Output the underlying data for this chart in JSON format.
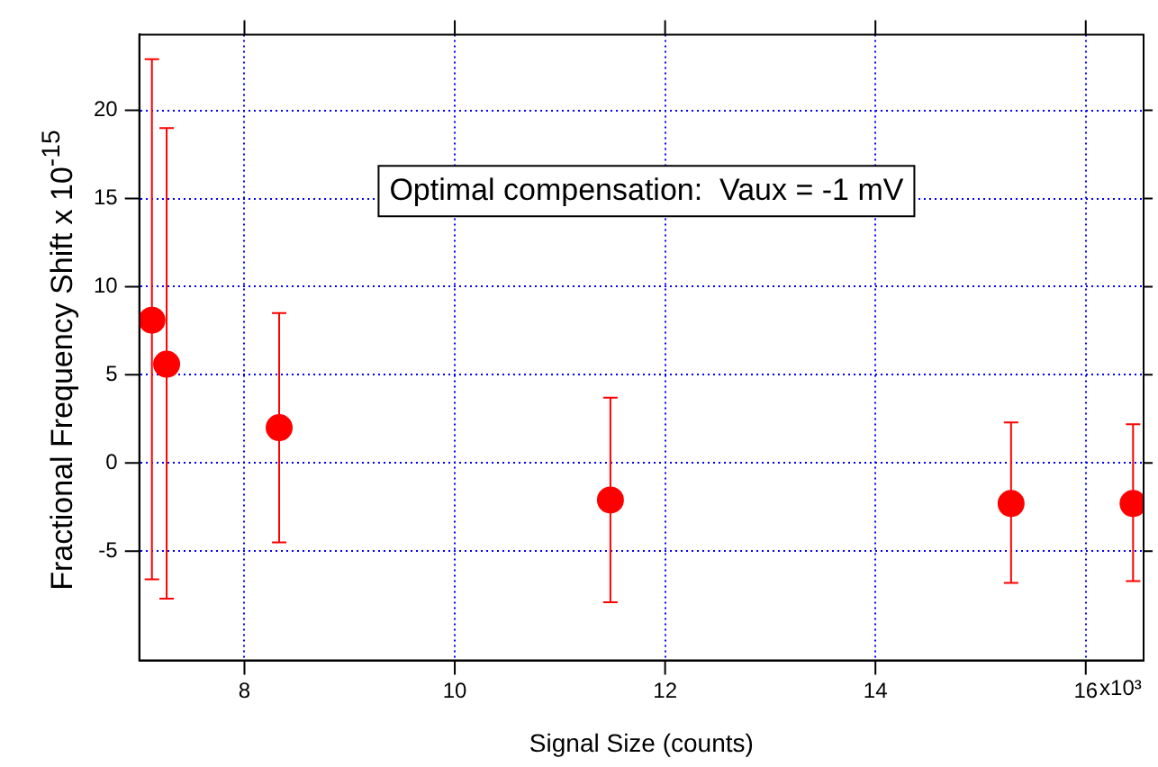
{
  "chart_data": {
    "type": "scatter",
    "xlabel": "Signal Size (counts)",
    "ylabel": "Fractional Frequency Shift x 10$^{-15}$",
    "annotations": [
      "Optimal compensation:  Vaux = -1 mV",
      "x10³"
    ],
    "x": [
      7.12,
      7.26,
      8.33,
      11.48,
      15.29,
      16.45
    ],
    "series": [
      {
        "color": "#ff0000",
        "values": [
          8.1,
          5.6,
          2.0,
          -2.1,
          -2.3,
          -2.3
        ],
        "errors": [
          [
            -6.6,
            22.9
          ],
          [
            -7.7,
            19.0
          ],
          [
            -4.5,
            8.5
          ],
          [
            -7.9,
            3.7
          ],
          [
            -6.8,
            2.3
          ],
          [
            -6.7,
            2.2
          ]
        ]
      }
    ],
    "xlim": [
      7.0,
      16.55
    ],
    "xticks": [
      8,
      10,
      12,
      14,
      16
    ],
    "ylim": [
      -11.2,
      24.3
    ],
    "yticks": [
      -5,
      0,
      5,
      10,
      15,
      20
    ],
    "grid": true,
    "legend": false,
    "marker": "circle"
  }
}
